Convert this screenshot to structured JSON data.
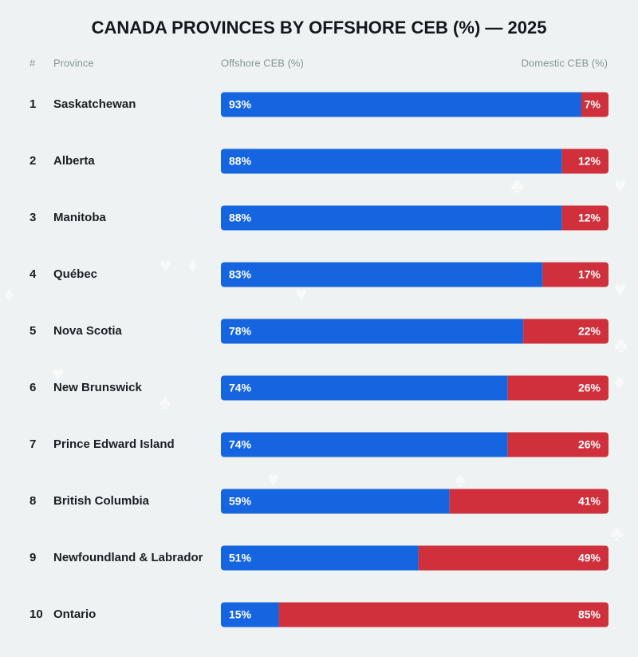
{
  "chart_data": {
    "type": "stacked-bar-horizontal",
    "title": "CANADA PROVINCES BY OFFSHORE CEB (%) — 2025",
    "rank_label": "#",
    "category_label": "Province",
    "ranks": [
      1,
      2,
      3,
      4,
      5,
      6,
      7,
      8,
      9,
      10
    ],
    "categories": [
      "Saskatchewan",
      "Alberta",
      "Manitoba",
      "Québec",
      "Nova Scotia",
      "New Brunswick",
      "Prince Edward Island",
      "British Columbia",
      "Newfoundland & Labrador",
      "Ontario"
    ],
    "xlim": [
      0,
      100
    ],
    "series": [
      {
        "name": "Offshore CEB (%)",
        "color": "#1565e0",
        "values": [
          93,
          88,
          88,
          83,
          78,
          74,
          74,
          59,
          51,
          15
        ],
        "value_labels": [
          "93%",
          "88%",
          "88%",
          "83%",
          "78%",
          "74%",
          "74%",
          "59%",
          "51%",
          "15%"
        ]
      },
      {
        "name": "Domestic CEB (%)",
        "color": "#d0303b",
        "values": [
          7,
          12,
          12,
          17,
          22,
          26,
          26,
          41,
          49,
          85
        ],
        "value_labels": [
          "7%",
          "12%",
          "12%",
          "17%",
          "22%",
          "26%",
          "26%",
          "41%",
          "49%",
          "85%"
        ]
      }
    ]
  }
}
